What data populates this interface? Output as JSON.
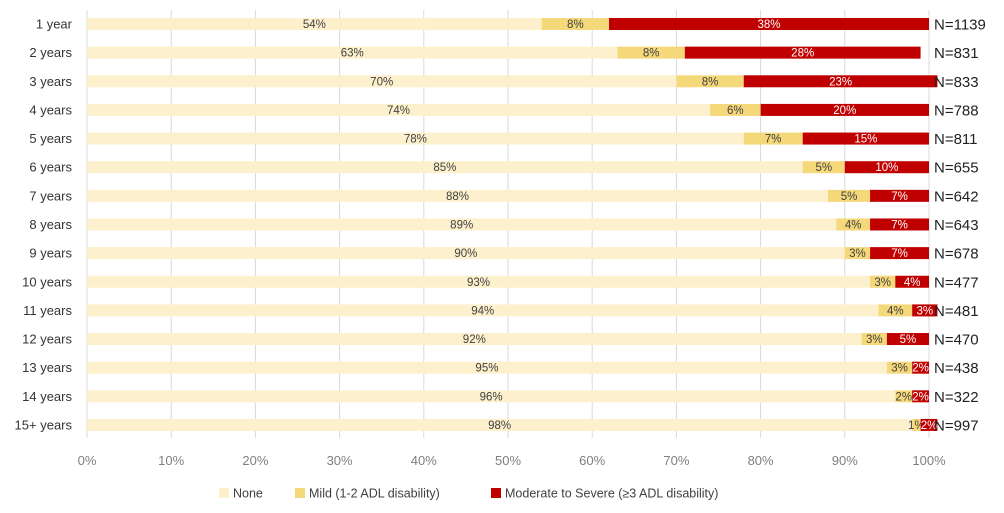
{
  "chart_data": {
    "type": "bar",
    "orientation": "horizontal",
    "stacked": "100%",
    "categories": [
      "1 year",
      "2 years",
      "3 years",
      "4 years",
      "5 years",
      "6 years",
      "7 years",
      "8 years",
      "9 years",
      "10 years",
      "11 years",
      "12 years",
      "13 years",
      "14 years",
      "15+ years"
    ],
    "series": [
      {
        "name": "None",
        "color": "#FDF0CC",
        "values": [
          54,
          63,
          70,
          74,
          78,
          85,
          88,
          89,
          90,
          93,
          94,
          92,
          95,
          96,
          98
        ],
        "labels": [
          "54%",
          "63%",
          "70%",
          "74%",
          "78%",
          "85%",
          "88%",
          "89%",
          "90%",
          "93%",
          "94%",
          "92%",
          "95%",
          "96%",
          "98%"
        ]
      },
      {
        "name": "Mild (1-2 ADL disability)",
        "color": "#F5D87A",
        "values": [
          8,
          8,
          8,
          6,
          7,
          5,
          5,
          4,
          3,
          3,
          4,
          3,
          3,
          2,
          1
        ],
        "labels": [
          "8%",
          "8%",
          "8%",
          "6%",
          "7%",
          "5%",
          "5%",
          "4%",
          "3%",
          "3%",
          "4%",
          "3%",
          "3%",
          "2%",
          "1%"
        ]
      },
      {
        "name": "Moderate to Severe (≥3 ADL disability)",
        "color": "#C00000",
        "values": [
          38,
          28,
          23,
          20,
          15,
          10,
          7,
          7,
          7,
          4,
          3,
          5,
          2,
          2,
          2
        ],
        "labels": [
          "38%",
          "28%",
          "23%",
          "20%",
          "15%",
          "10%",
          "7%",
          "7%",
          "7%",
          "4%",
          "3%",
          "5%",
          "2%",
          "2%",
          "2%"
        ]
      }
    ],
    "n_labels": [
      "N=1139",
      "N=831",
      "N=833",
      "N=788",
      "N=811",
      "N=655",
      "N=642",
      "N=643",
      "N=678",
      "N=477",
      "N=481",
      "N=470",
      "N=438",
      "N=322",
      "N=997"
    ],
    "x_ticks": [
      "0%",
      "10%",
      "20%",
      "30%",
      "40%",
      "50%",
      "60%",
      "70%",
      "80%",
      "90%",
      "100%"
    ],
    "xlim": [
      0,
      100
    ],
    "grid": true,
    "legend_position": "bottom"
  }
}
